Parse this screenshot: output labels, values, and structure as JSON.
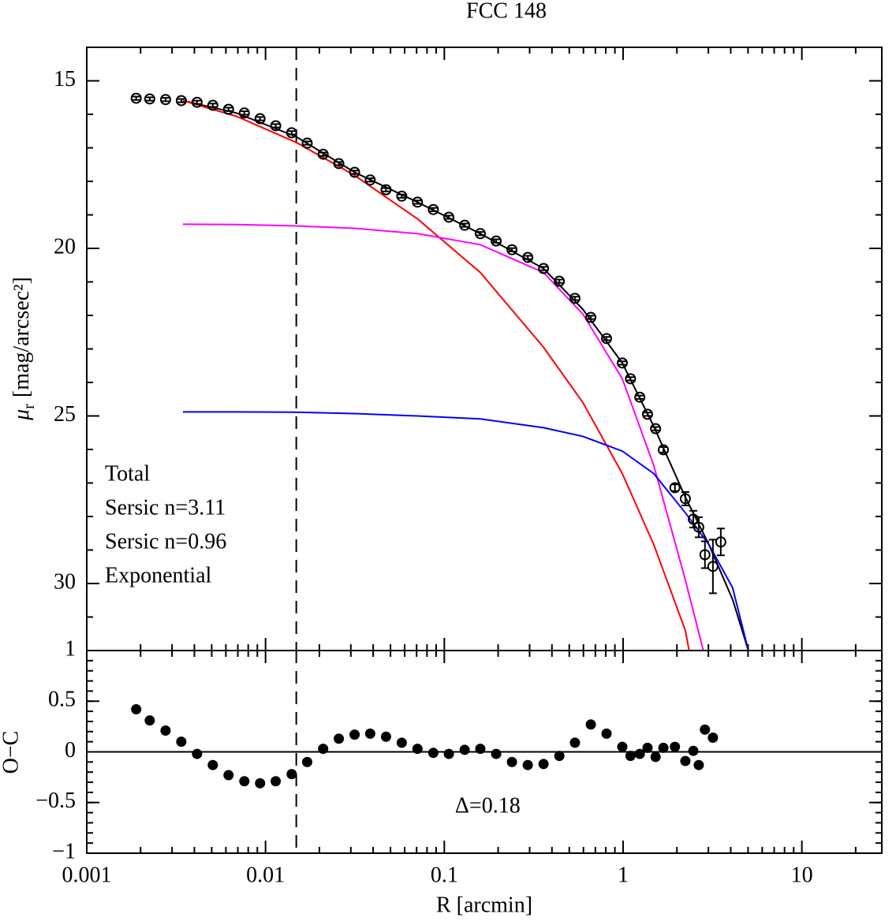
{
  "chart_data": [
    {
      "type": "scatter",
      "title": "FCC 148",
      "ylabel": {
        "symbol": "μ",
        "subscript": "r",
        "text": "[mag/arcsec²]"
      },
      "xscale": "log",
      "xlim": [
        0.001,
        28
      ],
      "ylim": [
        32,
        14
      ],
      "yticks": [
        15,
        20,
        25,
        30
      ],
      "y_minor_step": 1,
      "points": {
        "color": "#000000",
        "x": [
          0.00189,
          0.00225,
          0.00276,
          0.00338,
          0.00414,
          0.00507,
          0.00621,
          0.00761,
          0.00932,
          0.0114,
          0.014,
          0.0171,
          0.021,
          0.0257,
          0.0315,
          0.0385,
          0.0472,
          0.0578,
          0.0708,
          0.0868,
          0.106,
          0.13,
          0.159,
          0.195,
          0.239,
          0.293,
          0.359,
          0.44,
          0.538,
          0.66,
          0.808,
          0.99,
          1.1,
          1.24,
          1.37,
          1.52,
          1.68,
          1.95,
          2.23,
          2.47,
          2.65,
          2.87,
          3.18,
          3.52
        ],
        "values": [
          15.52,
          15.54,
          15.56,
          15.59,
          15.64,
          15.73,
          15.85,
          15.96,
          16.13,
          16.34,
          16.55,
          16.86,
          17.19,
          17.47,
          17.73,
          17.96,
          18.25,
          18.44,
          18.62,
          18.84,
          19.07,
          19.31,
          19.56,
          19.78,
          20.04,
          20.27,
          20.6,
          20.98,
          21.49,
          22.06,
          22.69,
          23.42,
          23.89,
          24.44,
          24.95,
          25.38,
          26.01,
          27.14,
          27.47,
          28.08,
          28.32,
          29.14,
          29.49,
          28.76
        ],
        "errors": [
          0.05,
          0.05,
          0.05,
          0.05,
          0.05,
          0.05,
          0.05,
          0.05,
          0.05,
          0.05,
          0.05,
          0.05,
          0.05,
          0.05,
          0.05,
          0.05,
          0.05,
          0.05,
          0.05,
          0.05,
          0.05,
          0.05,
          0.05,
          0.05,
          0.05,
          0.05,
          0.05,
          0.05,
          0.05,
          0.05,
          0.05,
          0.05,
          0.05,
          0.05,
          0.05,
          0.05,
          0.08,
          0.1,
          0.2,
          0.25,
          0.3,
          0.4,
          0.8,
          0.4
        ]
      },
      "series": [
        {
          "name": "Total",
          "color": "#000000",
          "x": [
            0.00345,
            0.00687,
            0.01486,
            0.0315,
            0.0708,
            0.159,
            0.359,
            0.596,
            0.99,
            1.485,
            2.23,
            3.02,
            4.1,
            5.02
          ],
          "values": [
            15.59,
            15.96,
            16.67,
            17.73,
            18.62,
            19.56,
            20.6,
            21.82,
            23.42,
            25.31,
            27.42,
            28.84,
            30.48,
            32
          ]
        },
        {
          "name": "Sersic n=3.11",
          "color": "#ff0000",
          "x": [
            0.00345,
            0.00687,
            0.01486,
            0.0315,
            0.0708,
            0.159,
            0.359,
            0.596,
            0.99,
            1.485,
            2.23,
            2.34
          ],
          "values": [
            15.59,
            16.06,
            16.84,
            17.82,
            19.12,
            20.72,
            22.95,
            24.6,
            26.72,
            28.84,
            31.4,
            32
          ]
        },
        {
          "name": "Sersic n=0.96",
          "color": "#ff00ff",
          "x": [
            0.00345,
            0.00687,
            0.01486,
            0.0315,
            0.0708,
            0.159,
            0.359,
            0.596,
            0.99,
            1.485,
            2.23,
            2.81
          ],
          "values": [
            19.28,
            19.29,
            19.33,
            19.4,
            19.56,
            19.89,
            20.72,
            21.96,
            23.89,
            26.48,
            29.89,
            32
          ]
        },
        {
          "name": "Exponential",
          "color": "#0000ff",
          "x": [
            0.00345,
            0.00687,
            0.01486,
            0.0315,
            0.0708,
            0.159,
            0.359,
            0.596,
            0.99,
            1.485,
            2.23,
            3.02,
            4.1,
            5.02
          ],
          "values": [
            24.88,
            24.88,
            24.89,
            24.93,
            25.0,
            25.09,
            25.35,
            25.61,
            26.05,
            26.72,
            27.89,
            28.84,
            30.13,
            32
          ]
        }
      ],
      "vline": 0.01486,
      "legend": "lower left"
    },
    {
      "type": "scatter",
      "xlabel": "R [arcmin]",
      "ylabel": "O−C",
      "xscale": "log",
      "xlim": [
        0.001,
        28
      ],
      "ylim": [
        -1,
        1
      ],
      "xticks": [
        0.001,
        0.01,
        0.1,
        1,
        10
      ],
      "yticks": [
        {
          "value": -1,
          "label": "−1"
        },
        {
          "value": -0.5,
          "label": "−0.5"
        },
        0,
        0.5,
        1
      ],
      "y_minor_step": 0.1,
      "color": "#000000",
      "x": [
        0.00189,
        0.00225,
        0.00276,
        0.00338,
        0.00414,
        0.00507,
        0.00621,
        0.00761,
        0.00932,
        0.0114,
        0.014,
        0.0171,
        0.021,
        0.0257,
        0.0315,
        0.0385,
        0.0472,
        0.0578,
        0.0708,
        0.0868,
        0.106,
        0.13,
        0.159,
        0.195,
        0.239,
        0.293,
        0.359,
        0.44,
        0.538,
        0.66,
        0.808,
        0.99,
        1.1,
        1.24,
        1.37,
        1.52,
        1.68,
        1.95,
        2.23,
        2.47,
        2.65,
        2.87,
        3.18
      ],
      "values": [
        0.42,
        0.31,
        0.21,
        0.1,
        -0.02,
        -0.13,
        -0.23,
        -0.29,
        -0.31,
        -0.29,
        -0.22,
        -0.1,
        0.03,
        0.13,
        0.17,
        0.18,
        0.15,
        0.09,
        0.03,
        -0.01,
        -0.02,
        0.02,
        0.03,
        -0.02,
        -0.1,
        -0.13,
        -0.12,
        -0.04,
        0.09,
        0.27,
        0.18,
        0.05,
        -0.04,
        -0.02,
        0.04,
        -0.05,
        0.04,
        0.05,
        -0.09,
        0.01,
        -0.13,
        0.22,
        0.14
      ],
      "hline": 0,
      "vline": 0.01486,
      "annotation": {
        "text": "Δ=0.18",
        "x": 0.1,
        "y": -0.55
      }
    }
  ]
}
